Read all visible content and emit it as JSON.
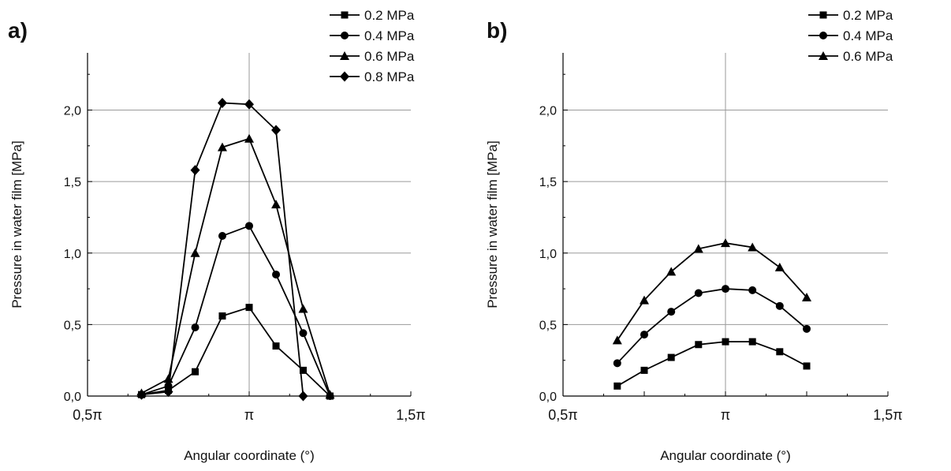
{
  "figure": {
    "panels": [
      "a)",
      "b)"
    ]
  },
  "chart_data": [
    {
      "panel": "a)",
      "type": "line",
      "xlabel": "Angular coordinate (°)",
      "ylabel": "Pressure in water film [MPa]",
      "x_unit": "π",
      "xlim": [
        0.5,
        1.5
      ],
      "ylim": [
        0,
        2.4
      ],
      "xticks": [
        {
          "value": 0.5,
          "label": "0,5π"
        },
        {
          "value": 1.0,
          "label": "π"
        },
        {
          "value": 1.5,
          "label": "1,5π"
        }
      ],
      "yticks": [
        {
          "value": 0,
          "label": "0,0"
        },
        {
          "value": 0.5,
          "label": "0,5"
        },
        {
          "value": 1.0,
          "label": "1,0"
        },
        {
          "value": 1.5,
          "label": "1,5"
        },
        {
          "value": 2.0,
          "label": "2,0"
        }
      ],
      "grid": true,
      "legend_position": "top-right",
      "series": [
        {
          "name": "0.2 MPa",
          "marker": "square",
          "x": [
            0.667,
            0.75,
            0.833,
            0.917,
            1.0,
            1.083,
            1.167,
            1.25
          ],
          "y": [
            0.01,
            0.04,
            0.17,
            0.56,
            0.62,
            0.35,
            0.18,
            0.0
          ]
        },
        {
          "name": "0.4 MPa",
          "marker": "circle",
          "x": [
            0.667,
            0.75,
            0.833,
            0.917,
            1.0,
            1.083,
            1.167,
            1.25
          ],
          "y": [
            0.01,
            0.07,
            0.48,
            1.12,
            1.19,
            0.85,
            0.44,
            0.0
          ]
        },
        {
          "name": "0.6 MPa",
          "marker": "triangle",
          "x": [
            0.667,
            0.75,
            0.833,
            0.917,
            1.0,
            1.083,
            1.167,
            1.25
          ],
          "y": [
            0.02,
            0.12,
            1.0,
            1.74,
            1.8,
            1.34,
            0.61,
            0.01
          ]
        },
        {
          "name": "0.8 MPa",
          "marker": "diamond",
          "x": [
            0.667,
            0.75,
            0.833,
            0.917,
            1.0,
            1.083,
            1.167
          ],
          "y": [
            0.01,
            0.03,
            1.58,
            2.05,
            2.04,
            1.86,
            0.0
          ]
        }
      ]
    },
    {
      "panel": "b)",
      "type": "line",
      "xlabel": "Angular coordinate (°)",
      "ylabel": "Pressure in water film [MPa]",
      "x_unit": "π",
      "xlim": [
        0.5,
        1.5
      ],
      "ylim": [
        0,
        2.4
      ],
      "xticks": [
        {
          "value": 0.5,
          "label": "0,5π"
        },
        {
          "value": 1.0,
          "label": "π"
        },
        {
          "value": 1.5,
          "label": "1,5π"
        }
      ],
      "yticks": [
        {
          "value": 0,
          "label": "0,0"
        },
        {
          "value": 0.5,
          "label": "0,5"
        },
        {
          "value": 1.0,
          "label": "1,0"
        },
        {
          "value": 1.5,
          "label": "1,5"
        },
        {
          "value": 2.0,
          "label": "2,0"
        }
      ],
      "grid": true,
      "legend_position": "top-right",
      "series": [
        {
          "name": "0.2 MPa",
          "marker": "square",
          "x": [
            0.667,
            0.75,
            0.833,
            0.917,
            1.0,
            1.083,
            1.167,
            1.25
          ],
          "y": [
            0.07,
            0.18,
            0.27,
            0.36,
            0.38,
            0.38,
            0.31,
            0.21
          ]
        },
        {
          "name": "0.4 MPa",
          "marker": "circle",
          "x": [
            0.667,
            0.75,
            0.833,
            0.917,
            1.0,
            1.083,
            1.167,
            1.25
          ],
          "y": [
            0.23,
            0.43,
            0.59,
            0.72,
            0.75,
            0.74,
            0.63,
            0.47
          ]
        },
        {
          "name": "0.6 MPa",
          "marker": "triangle",
          "x": [
            0.667,
            0.75,
            0.833,
            0.917,
            1.0,
            1.083,
            1.167,
            1.25
          ],
          "y": [
            0.39,
            0.67,
            0.87,
            1.03,
            1.07,
            1.04,
            0.9,
            0.69
          ]
        }
      ]
    }
  ]
}
